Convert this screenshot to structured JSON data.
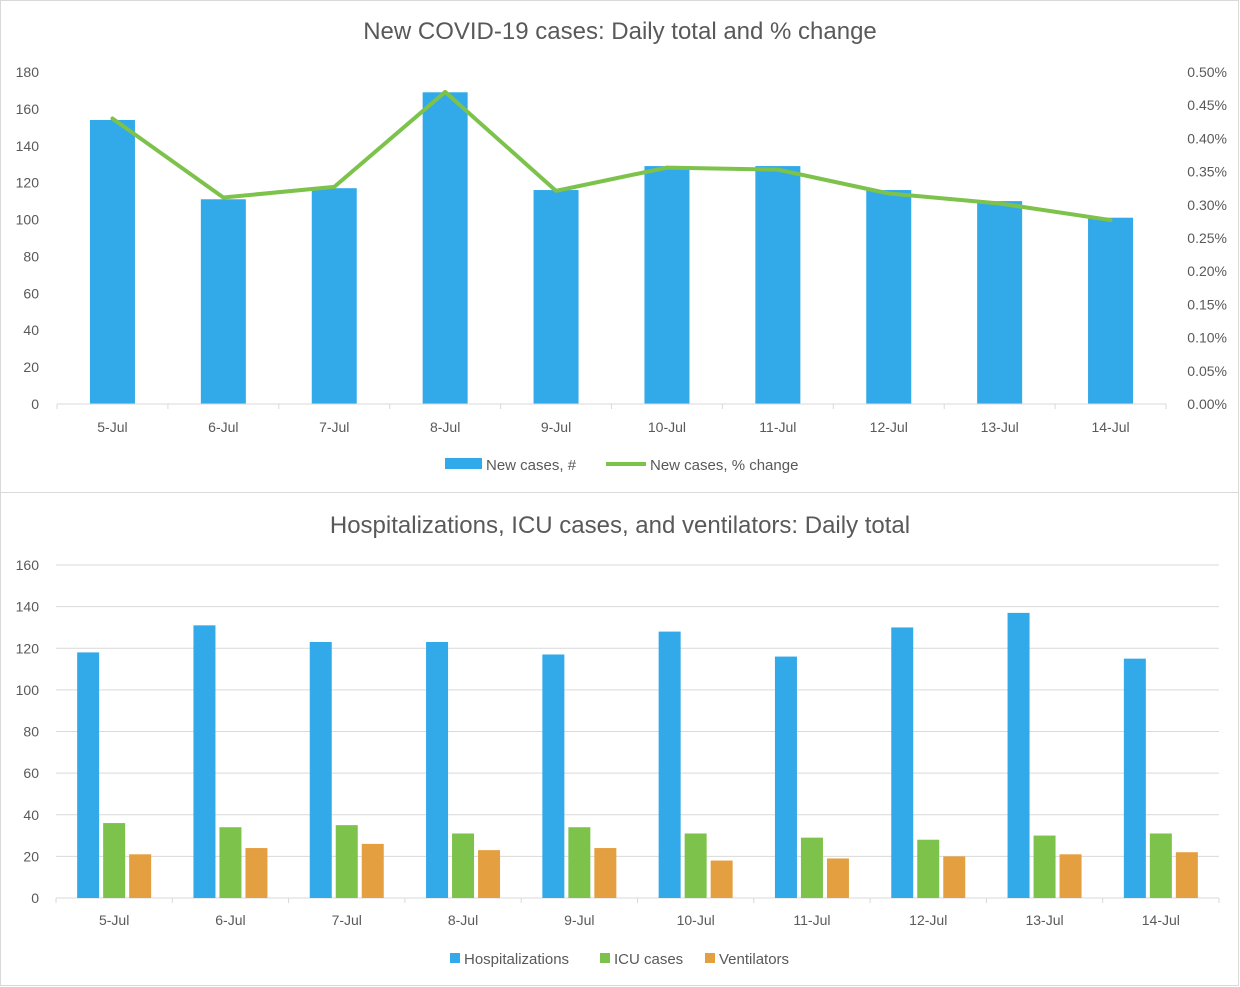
{
  "colors": {
    "blue": "#32a9e8",
    "green": "#7dc24b",
    "orange": "#e4a040",
    "grid": "#d9d9d9",
    "text": "#595959"
  },
  "chart_data": [
    {
      "type": "bar",
      "title": "New COVID-19 cases: Daily total and % change",
      "categories": [
        "5-Jul",
        "6-Jul",
        "7-Jul",
        "8-Jul",
        "9-Jul",
        "10-Jul",
        "11-Jul",
        "12-Jul",
        "13-Jul",
        "14-Jul"
      ],
      "series": [
        {
          "name": "New cases, #",
          "type": "bar",
          "axis": "left",
          "color": "#32a9e8",
          "values": [
            154,
            111,
            117,
            169,
            116,
            129,
            129,
            116,
            110,
            101
          ]
        },
        {
          "name": "New cases, % change",
          "type": "line",
          "axis": "right",
          "color": "#7dc24b",
          "values": [
            0.43,
            0.311,
            0.327,
            0.47,
            0.321,
            0.356,
            0.353,
            0.317,
            0.302,
            0.277
          ]
        }
      ],
      "y_left": {
        "ylim": [
          0,
          180
        ],
        "ticks": [
          "0",
          "20",
          "40",
          "60",
          "80",
          "100",
          "120",
          "140",
          "160",
          "180"
        ]
      },
      "y_right": {
        "ylim": [
          0,
          0.5
        ],
        "ticks": [
          "0.00%",
          "0.05%",
          "0.10%",
          "0.15%",
          "0.20%",
          "0.25%",
          "0.30%",
          "0.35%",
          "0.40%",
          "0.45%",
          "0.50%"
        ]
      },
      "grid": false,
      "legend": "bottom"
    },
    {
      "type": "bar",
      "title": "Hospitalizations, ICU cases, and ventilators: Daily total",
      "categories": [
        "5-Jul",
        "6-Jul",
        "7-Jul",
        "8-Jul",
        "9-Jul",
        "10-Jul",
        "11-Jul",
        "12-Jul",
        "13-Jul",
        "14-Jul"
      ],
      "series": [
        {
          "name": "Hospitalizations",
          "color": "#32a9e8",
          "values": [
            118,
            131,
            123,
            123,
            117,
            128,
            116,
            130,
            137,
            115
          ]
        },
        {
          "name": "ICU cases",
          "color": "#7dc24b",
          "values": [
            36,
            34,
            35,
            31,
            34,
            31,
            29,
            28,
            30,
            31
          ]
        },
        {
          "name": "Ventilators",
          "color": "#e4a040",
          "values": [
            21,
            24,
            26,
            23,
            24,
            18,
            19,
            20,
            21,
            22
          ]
        }
      ],
      "y": {
        "ylim": [
          0,
          160
        ],
        "ticks": [
          "0",
          "20",
          "40",
          "60",
          "80",
          "100",
          "120",
          "140",
          "160"
        ]
      },
      "grid": true,
      "legend": "bottom"
    }
  ]
}
